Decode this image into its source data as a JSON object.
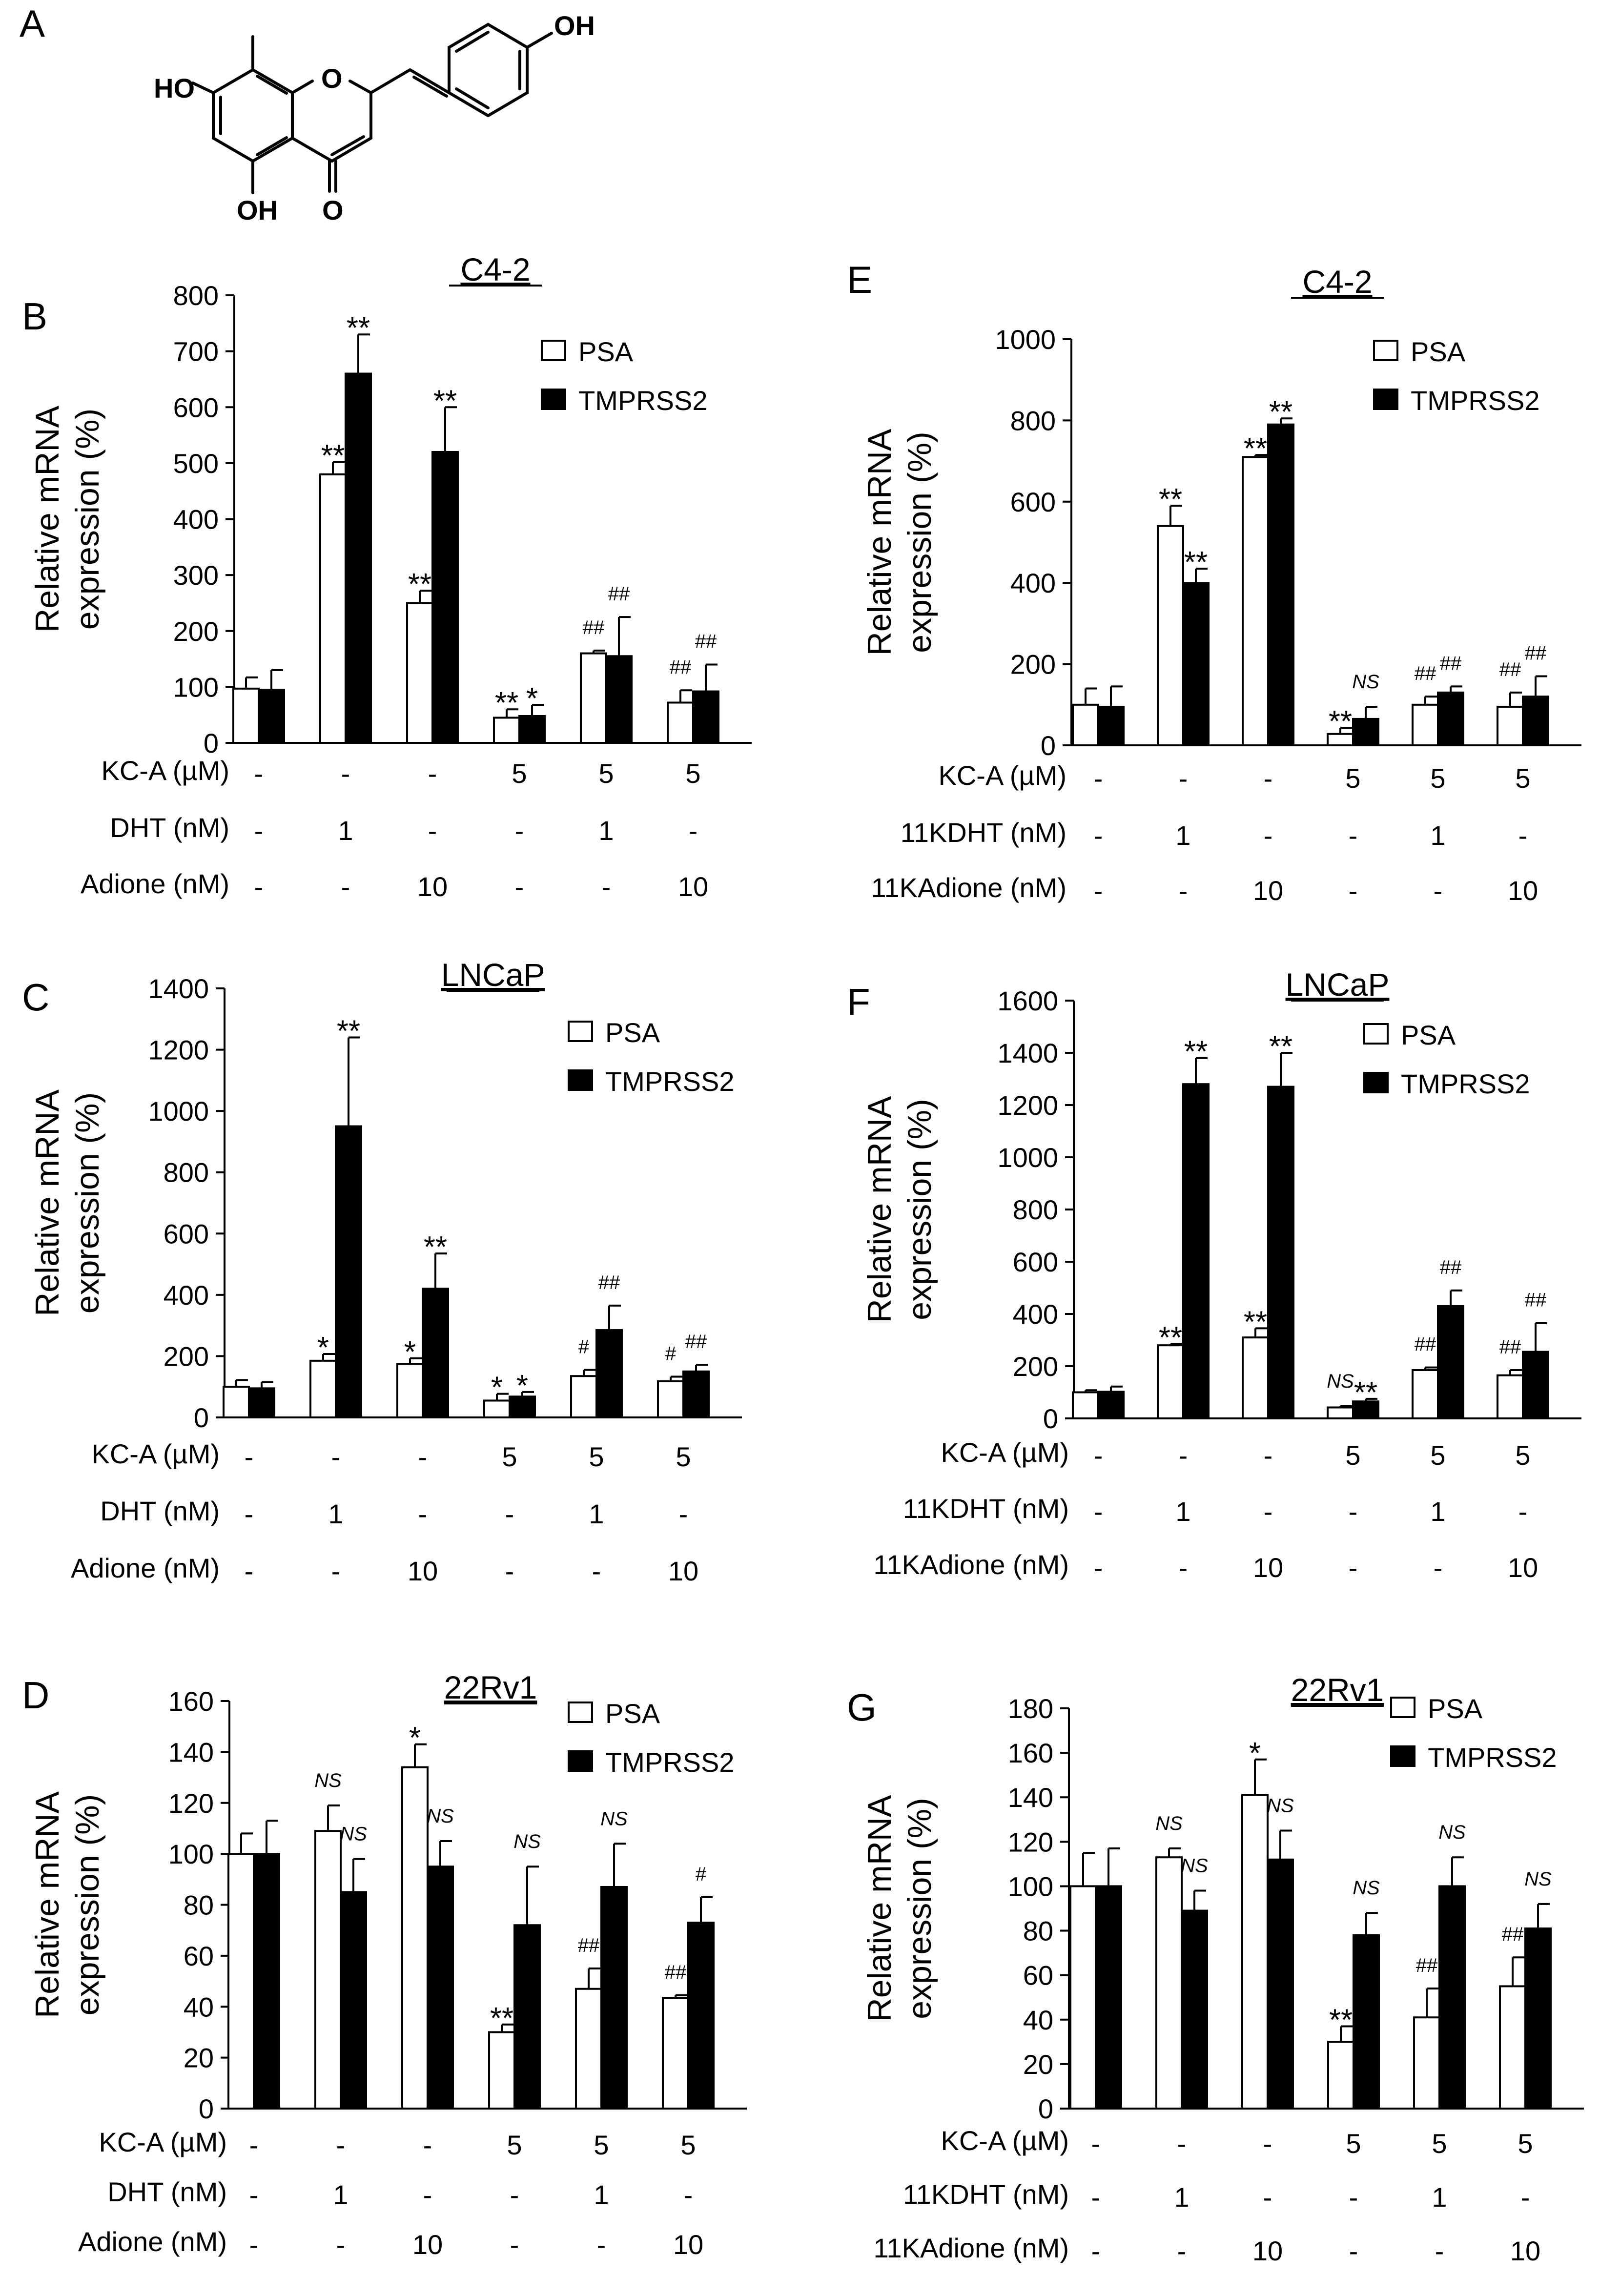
{
  "figure_labels": {
    "a": "A"
  },
  "molecule": {
    "labels": {
      "ho_left": "HO",
      "oh_bottom": "OH",
      "o_carbonyl": "O",
      "o_ring": "O",
      "oh_top": "OH"
    }
  },
  "colors": {
    "psa": "#ffffff",
    "tmprss2": "#000000",
    "axis": "#000000"
  },
  "chart_data": [
    {
      "panel": "B",
      "type": "bar",
      "title": "C4-2",
      "ylabel": [
        "Relative mRNA",
        "expression (%)"
      ],
      "ylim": [
        0,
        800
      ],
      "yticks": [
        0,
        100,
        200,
        300,
        400,
        500,
        600,
        700,
        800
      ],
      "legend": [
        "PSA",
        "TMPRSS2"
      ],
      "series": [
        {
          "name": "PSA",
          "values": [
            97,
            480,
            250,
            45,
            160,
            72
          ],
          "errors": [
            20,
            22,
            22,
            15,
            5,
            22
          ],
          "marks": [
            "",
            "**",
            "**",
            "**",
            "##",
            "##"
          ]
        },
        {
          "name": "TMPRSS2",
          "values": [
            95,
            660,
            520,
            48,
            155,
            92
          ],
          "errors": [
            35,
            70,
            80,
            20,
            70,
            48
          ],
          "marks": [
            "",
            "**",
            "**",
            "*",
            "##",
            "##"
          ]
        }
      ],
      "conditions": [
        {
          "label": "KC-A (µM)",
          "values": [
            "-",
            "-",
            "-",
            "5",
            "5",
            "5"
          ]
        },
        {
          "label": "DHT  (nM)",
          "values": [
            "-",
            "1",
            "-",
            "-",
            "1",
            "-"
          ]
        },
        {
          "label": "Adione (nM)",
          "values": [
            "-",
            "-",
            "10",
            "-",
            "-",
            "10"
          ]
        }
      ]
    },
    {
      "panel": "C",
      "type": "bar",
      "title": "LNCaP",
      "ylabel": [
        "Relative mRNA",
        "expression (%)"
      ],
      "ylim": [
        0,
        1400
      ],
      "yticks": [
        0,
        200,
        400,
        600,
        800,
        1000,
        1200,
        1400
      ],
      "legend": [
        "PSA",
        "TMPRSS2"
      ],
      "series": [
        {
          "name": "PSA",
          "values": [
            100,
            185,
            175,
            55,
            135,
            118
          ],
          "errors": [
            22,
            22,
            18,
            22,
            20,
            15
          ],
          "marks": [
            "",
            "*",
            "*",
            "*",
            "#",
            "#"
          ]
        },
        {
          "name": "TMPRSS2",
          "values": [
            95,
            950,
            420,
            68,
            285,
            150
          ],
          "errors": [
            20,
            290,
            115,
            15,
            80,
            22
          ],
          "marks": [
            "",
            "**",
            "**",
            "*",
            "##",
            "##"
          ]
        }
      ],
      "conditions": [
        {
          "label": "KC-A (µM)",
          "values": [
            "-",
            "-",
            "-",
            "5",
            "5",
            "5"
          ]
        },
        {
          "label": "DHT  (nM)",
          "values": [
            "-",
            "1",
            "-",
            "-",
            "1",
            "-"
          ]
        },
        {
          "label": "Adione (nM)",
          "values": [
            "-",
            "-",
            "10",
            "-",
            "-",
            "10"
          ]
        }
      ]
    },
    {
      "panel": "D",
      "type": "bar",
      "title": "22Rv1",
      "ylabel": [
        "Relative mRNA",
        "expression (%)"
      ],
      "ylim": [
        0,
        160
      ],
      "yticks": [
        0,
        20,
        40,
        60,
        80,
        100,
        120,
        140,
        160
      ],
      "legend": [
        "PSA",
        "TMPRSS2"
      ],
      "series": [
        {
          "name": "PSA",
          "values": [
            100,
            109,
            134,
            30,
            47,
            43.5
          ],
          "errors": [
            8,
            10,
            9,
            3,
            8,
            1
          ],
          "marks": [
            "",
            "NS",
            "*",
            "**",
            "##",
            "##"
          ]
        },
        {
          "name": "TMPRSS2",
          "values": [
            100,
            85,
            95,
            72,
            87,
            73
          ],
          "errors": [
            13,
            13,
            10,
            23,
            17,
            10
          ],
          "marks": [
            "",
            "NS",
            "NS",
            "NS",
            "NS",
            "#"
          ]
        }
      ],
      "conditions": [
        {
          "label": "KC-A (µM)",
          "values": [
            "-",
            "-",
            "-",
            "5",
            "5",
            "5"
          ]
        },
        {
          "label": "DHT  (nM)",
          "values": [
            "-",
            "1",
            "-",
            "-",
            "1",
            "-"
          ]
        },
        {
          "label": "Adione (nM)",
          "values": [
            "-",
            "-",
            "10",
            "-",
            "-",
            "10"
          ]
        }
      ]
    },
    {
      "panel": "E",
      "type": "bar",
      "title": "C4-2",
      "ylabel": [
        "Relative mRNA",
        "expression (%)"
      ],
      "ylim": [
        0,
        1000
      ],
      "yticks": [
        0,
        200,
        400,
        600,
        800,
        1000
      ],
      "legend": [
        "PSA",
        "TMPRSS2"
      ],
      "series": [
        {
          "name": "PSA",
          "values": [
            100,
            540,
            710,
            28,
            100,
            95
          ],
          "errors": [
            40,
            50,
            5,
            15,
            20,
            35
          ],
          "marks": [
            "",
            "**",
            "**",
            "**",
            "##",
            "##"
          ]
        },
        {
          "name": "TMPRSS2",
          "values": [
            95,
            400,
            790,
            65,
            130,
            120
          ],
          "errors": [
            50,
            35,
            15,
            30,
            15,
            50
          ],
          "marks": [
            "",
            "**",
            "**",
            "NS",
            "##",
            "##"
          ]
        }
      ],
      "conditions": [
        {
          "label": "KC-A (µM)",
          "values": [
            "-",
            "-",
            "-",
            "5",
            "5",
            "5"
          ]
        },
        {
          "label": "11KDHT (nM)",
          "values": [
            "-",
            "1",
            "-",
            "-",
            "1",
            "-"
          ]
        },
        {
          "label": "11KAdione (nM)",
          "values": [
            "-",
            "-",
            "10",
            "-",
            "-",
            "10"
          ]
        }
      ]
    },
    {
      "panel": "F",
      "type": "bar",
      "title": "LNCaP",
      "ylabel": [
        "Relative mRNA",
        "expression (%)"
      ],
      "ylim": [
        0,
        1600
      ],
      "yticks": [
        0,
        200,
        400,
        600,
        800,
        1000,
        1200,
        1400,
        1600
      ],
      "legend": [
        "PSA",
        "TMPRSS2"
      ],
      "series": [
        {
          "name": "PSA",
          "values": [
            100,
            280,
            310,
            42,
            185,
            165
          ],
          "errors": [
            8,
            5,
            35,
            5,
            10,
            20
          ],
          "marks": [
            "",
            "**",
            "**",
            "NS",
            "##",
            "##"
          ]
        },
        {
          "name": "TMPRSS2",
          "values": [
            102,
            1280,
            1270,
            65,
            430,
            255
          ],
          "errors": [
            20,
            100,
            130,
            10,
            60,
            110
          ],
          "marks": [
            "",
            "**",
            "**",
            "**",
            "##",
            "##"
          ]
        }
      ],
      "conditions": [
        {
          "label": "KC-A (µM)",
          "values": [
            "-",
            "-",
            "-",
            "5",
            "5",
            "5"
          ]
        },
        {
          "label": "11KDHT (nM)",
          "values": [
            "-",
            "1",
            "-",
            "-",
            "1",
            "-"
          ]
        },
        {
          "label": "11KAdione (nM)",
          "values": [
            "-",
            "-",
            "10",
            "-",
            "-",
            "10"
          ]
        }
      ]
    },
    {
      "panel": "G",
      "type": "bar",
      "title": "22Rv1",
      "ylabel": [
        "Relative mRNA",
        "expression (%)"
      ],
      "ylim": [
        0,
        180
      ],
      "yticks": [
        0,
        20,
        40,
        60,
        80,
        100,
        120,
        140,
        160,
        180
      ],
      "legend": [
        "PSA",
        "TMPRSS2"
      ],
      "series": [
        {
          "name": "PSA",
          "values": [
            100,
            113,
            141,
            30,
            41,
            55
          ],
          "errors": [
            15,
            4,
            16,
            7,
            13,
            13
          ],
          "marks": [
            "",
            "NS",
            "*",
            "**",
            "##",
            "##"
          ]
        },
        {
          "name": "TMPRSS2",
          "values": [
            100,
            89,
            112,
            78,
            100,
            81
          ],
          "errors": [
            17,
            9,
            13,
            10,
            13,
            11
          ],
          "marks": [
            "",
            "NS",
            "NS",
            "NS",
            "NS",
            "NS"
          ]
        }
      ],
      "conditions": [
        {
          "label": "KC-A (µM)",
          "values": [
            "-",
            "-",
            "-",
            "5",
            "5",
            "5"
          ]
        },
        {
          "label": "11KDHT (nM)",
          "values": [
            "-",
            "1",
            "-",
            "-",
            "1",
            "-"
          ]
        },
        {
          "label": "11KAdione (nM)",
          "values": [
            "-",
            "-",
            "10",
            "-",
            "-",
            "10"
          ]
        }
      ]
    }
  ]
}
